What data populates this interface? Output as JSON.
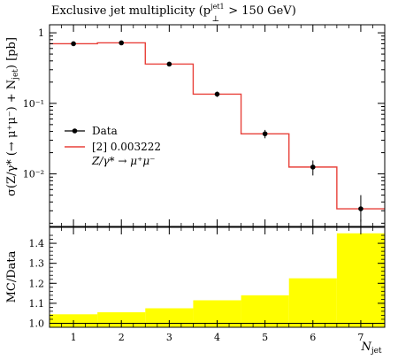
{
  "chart_data": {
    "type": "step",
    "title": "Exclusive jet multiplicity (p",
    "title_sup": "jet1",
    "title_sub": "⊥",
    "title_rest": " > 150 GeV)",
    "ylabel": "σ(Z/γ* (→ μ⁺μ⁻) + N",
    "ylabel_sub": "jet",
    "ylabel_rest": ") [pb]",
    "xlabel": "N",
    "xlabel_sub": "jet",
    "yscale": "log",
    "ylim": [
      0.0018,
      1.3
    ],
    "xlim": [
      0.5,
      7.5
    ],
    "main_yticks": [
      {
        "value": 1,
        "label": "1"
      },
      {
        "value": 0.1,
        "label": "10⁻¹"
      },
      {
        "value": 0.01,
        "label": "10⁻²"
      }
    ],
    "x_ticks": [
      "1",
      "2",
      "3",
      "4",
      "5",
      "6",
      "7"
    ],
    "data": {
      "name": "Data",
      "x": [
        1,
        2,
        3,
        4,
        5,
        6,
        7
      ],
      "y": [
        0.7,
        0.72,
        0.36,
        0.135,
        0.037,
        0.0125,
        0.0032
      ],
      "err_up": [
        0.04,
        0.04,
        0.02,
        0.012,
        0.005,
        0.003,
        0.0018
      ],
      "err_down": [
        0.04,
        0.04,
        0.02,
        0.012,
        0.005,
        0.003,
        0.0011
      ]
    },
    "mc": {
      "name": "[2] 0.003222",
      "color": "#e8413a",
      "edges": [
        0.5,
        1.5,
        2.5,
        3.5,
        4.5,
        5.5,
        6.5,
        7.5
      ],
      "values": [
        0.7,
        0.72,
        0.36,
        0.135,
        0.037,
        0.0125,
        0.0032
      ]
    },
    "legend_extra": "Z/γ* → μ⁺μ⁻",
    "legend_position": "center-left",
    "ratio": {
      "ylabel": "MC/Data",
      "ylim": [
        0.98,
        1.48
      ],
      "yticks": [
        "1.0",
        "1.1",
        "1.2",
        "1.3",
        "1.4"
      ],
      "band_color": "#ffff00",
      "band_upper": [
        1.045,
        1.055,
        1.075,
        1.115,
        1.14,
        1.225,
        1.45
      ]
    }
  }
}
